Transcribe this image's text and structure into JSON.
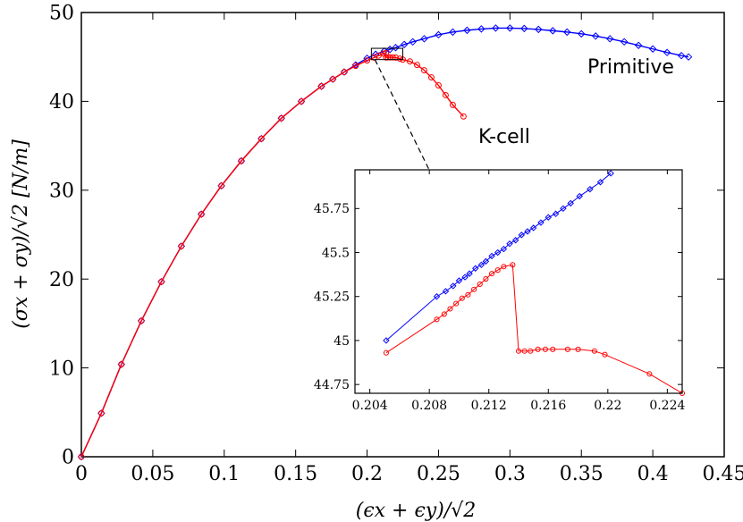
{
  "chart_data": [
    {
      "type": "line",
      "xlabel": "(ϵx + ϵy)/√2",
      "ylabel": "(σx + σy)/√2 [N/m]",
      "xlim": [
        0,
        0.45
      ],
      "ylim": [
        0,
        50
      ],
      "x_ticks": [
        "0",
        "0.05",
        "0.1",
        "0.15",
        "0.2",
        "0.25",
        "0.3",
        "0.35",
        "0.4",
        "0.45"
      ],
      "y_ticks": [
        "0",
        "10",
        "20",
        "30",
        "40",
        "50"
      ],
      "grid": false,
      "annotations": [
        "Primitive",
        "K-cell"
      ],
      "series": [
        {
          "name": "Primitive",
          "color": "#0000ff",
          "marker": "diamond",
          "x": [
            0.0,
            0.014,
            0.028,
            0.042,
            0.056,
            0.07,
            0.084,
            0.098,
            0.112,
            0.126,
            0.14,
            0.154,
            0.168,
            0.176,
            0.184,
            0.192,
            0.2,
            0.206,
            0.212,
            0.216,
            0.22,
            0.226,
            0.232,
            0.24,
            0.25,
            0.26,
            0.27,
            0.28,
            0.29,
            0.3,
            0.31,
            0.32,
            0.33,
            0.34,
            0.35,
            0.36,
            0.37,
            0.38,
            0.39,
            0.4,
            0.41,
            0.42,
            0.425
          ],
          "y": [
            0.0,
            4.9,
            10.4,
            15.3,
            19.7,
            23.7,
            27.3,
            30.5,
            33.3,
            35.8,
            38.1,
            40.0,
            41.7,
            42.5,
            43.3,
            44.1,
            44.85,
            45.3,
            45.65,
            45.85,
            46.05,
            46.4,
            46.7,
            47.05,
            47.5,
            47.8,
            48.0,
            48.15,
            48.25,
            48.25,
            48.2,
            48.1,
            47.95,
            47.8,
            47.6,
            47.35,
            47.05,
            46.7,
            46.3,
            45.9,
            45.5,
            45.15,
            45.0
          ]
        },
        {
          "name": "K-cell",
          "color": "#ff0000",
          "marker": "circle",
          "x": [
            0.0,
            0.014,
            0.028,
            0.042,
            0.056,
            0.07,
            0.084,
            0.098,
            0.112,
            0.126,
            0.14,
            0.154,
            0.168,
            0.176,
            0.184,
            0.192,
            0.2,
            0.205,
            0.208,
            0.2115,
            0.2132,
            0.2133,
            0.2145,
            0.216,
            0.218,
            0.22,
            0.223,
            0.225,
            0.23,
            0.235,
            0.24,
            0.245,
            0.25,
            0.255,
            0.26,
            0.2675
          ],
          "y": [
            0.0,
            4.9,
            10.4,
            15.3,
            19.7,
            23.7,
            27.3,
            30.5,
            33.3,
            35.8,
            38.1,
            40.0,
            41.7,
            42.5,
            43.3,
            44.0,
            44.6,
            44.93,
            45.15,
            45.38,
            45.44,
            44.94,
            44.95,
            44.95,
            44.95,
            44.93,
            44.81,
            44.7,
            44.5,
            44.1,
            43.5,
            42.7,
            41.8,
            40.7,
            39.6,
            38.3
          ]
        }
      ]
    },
    {
      "type": "line",
      "title": "",
      "xlim": [
        0.203,
        0.225
      ],
      "ylim": [
        44.7,
        45.97
      ],
      "x_ticks": [
        "0.204",
        "0.208",
        "0.212",
        "0.216",
        "0.22",
        "0.224"
      ],
      "y_ticks": [
        "44.75",
        "45",
        "45.25",
        "45.5",
        "45.75"
      ],
      "grid": false,
      "series": [
        {
          "name": "Primitive",
          "color": "#0000ff",
          "marker": "diamond",
          "x": [
            0.2051,
            0.2085,
            0.2091,
            0.2096,
            0.21,
            0.2104,
            0.2107,
            0.2111,
            0.2115,
            0.2118,
            0.2122,
            0.2126,
            0.213,
            0.2134,
            0.2138,
            0.2142,
            0.2146,
            0.215,
            0.2155,
            0.216,
            0.2165,
            0.217,
            0.2175,
            0.2181,
            0.2188,
            0.2195,
            0.2202
          ],
          "y": [
            45.0,
            45.25,
            45.28,
            45.31,
            45.34,
            45.36,
            45.38,
            45.41,
            45.43,
            45.45,
            45.48,
            45.5,
            45.52,
            45.55,
            45.57,
            45.6,
            45.62,
            45.64,
            45.67,
            45.7,
            45.72,
            45.75,
            45.78,
            45.82,
            45.86,
            45.9,
            45.95
          ]
        },
        {
          "name": "K-cell",
          "color": "#ff0000",
          "marker": "circle",
          "x": [
            0.2051,
            0.2085,
            0.209,
            0.2094,
            0.2098,
            0.2102,
            0.2106,
            0.211,
            0.2114,
            0.2118,
            0.2122,
            0.2126,
            0.213,
            0.2136,
            0.214,
            0.2144,
            0.2148,
            0.2153,
            0.2158,
            0.2163,
            0.2173,
            0.218,
            0.2191,
            0.2198,
            0.2228,
            0.225
          ],
          "y": [
            44.93,
            45.12,
            45.15,
            45.18,
            45.21,
            45.24,
            45.26,
            45.29,
            45.32,
            45.35,
            45.38,
            45.4,
            45.42,
            45.43,
            44.94,
            44.94,
            44.94,
            44.95,
            44.95,
            44.95,
            44.95,
            44.95,
            44.94,
            44.92,
            44.81,
            44.7
          ]
        }
      ]
    }
  ]
}
